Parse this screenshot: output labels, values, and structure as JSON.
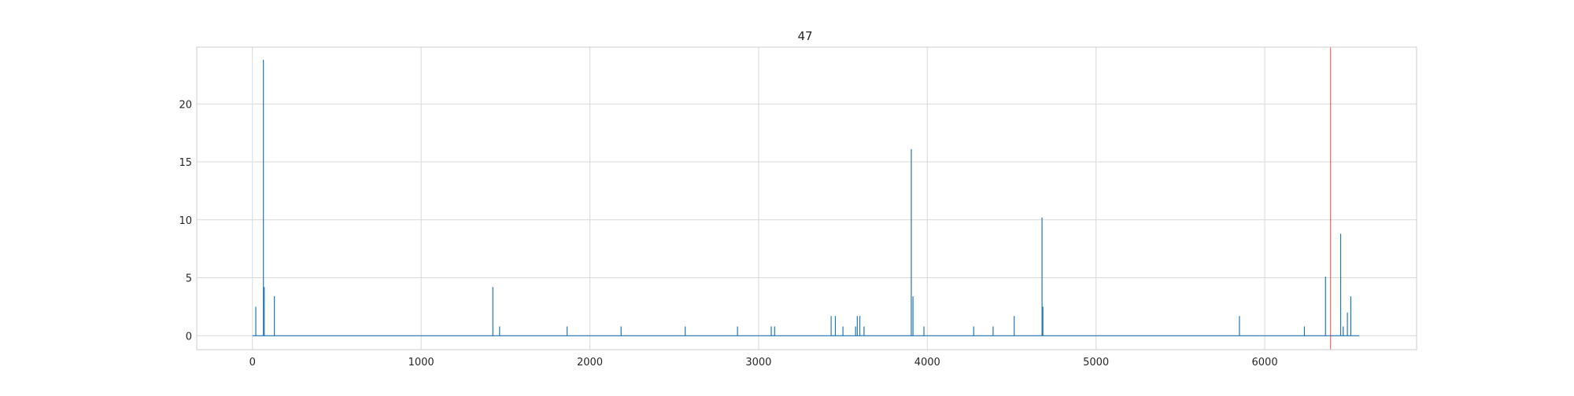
{
  "chart_data": {
    "type": "line",
    "title": "47",
    "xlabel": "",
    "ylabel": "",
    "xlim": [
      -330,
      6900
    ],
    "ylim": [
      -1.2,
      24.9
    ],
    "grid": true,
    "x_ticks": [
      0,
      1000,
      2000,
      3000,
      4000,
      5000,
      6000
    ],
    "y_ticks": [
      0,
      5,
      10,
      15,
      20
    ],
    "series": [
      {
        "name": "",
        "color": "#1f77b4",
        "x_end": 6560,
        "spikes": [
          [
            20,
            2.5
          ],
          [
            65,
            23.8
          ],
          [
            70,
            4.2
          ],
          [
            130,
            3.4
          ],
          [
            1425,
            4.2
          ],
          [
            1465,
            0.8
          ],
          [
            1865,
            0.8
          ],
          [
            2185,
            0.8
          ],
          [
            2565,
            0.8
          ],
          [
            2875,
            0.8
          ],
          [
            3075,
            0.8
          ],
          [
            3095,
            0.8
          ],
          [
            3430,
            1.7
          ],
          [
            3455,
            1.7
          ],
          [
            3500,
            0.8
          ],
          [
            3575,
            0.8
          ],
          [
            3585,
            1.7
          ],
          [
            3600,
            1.7
          ],
          [
            3625,
            0.8
          ],
          [
            3905,
            16.1
          ],
          [
            3915,
            3.4
          ],
          [
            3980,
            0.8
          ],
          [
            4275,
            0.8
          ],
          [
            4390,
            0.8
          ],
          [
            4515,
            1.7
          ],
          [
            4680,
            10.2
          ],
          [
            4685,
            2.5
          ],
          [
            5850,
            1.7
          ],
          [
            6235,
            0.8
          ],
          [
            6360,
            5.1
          ],
          [
            6450,
            8.8
          ],
          [
            6465,
            0.8
          ],
          [
            6490,
            2.0
          ],
          [
            6510,
            3.4
          ]
        ]
      }
    ],
    "vlines": [
      {
        "x": 6390,
        "color": "#ff0000"
      }
    ]
  }
}
